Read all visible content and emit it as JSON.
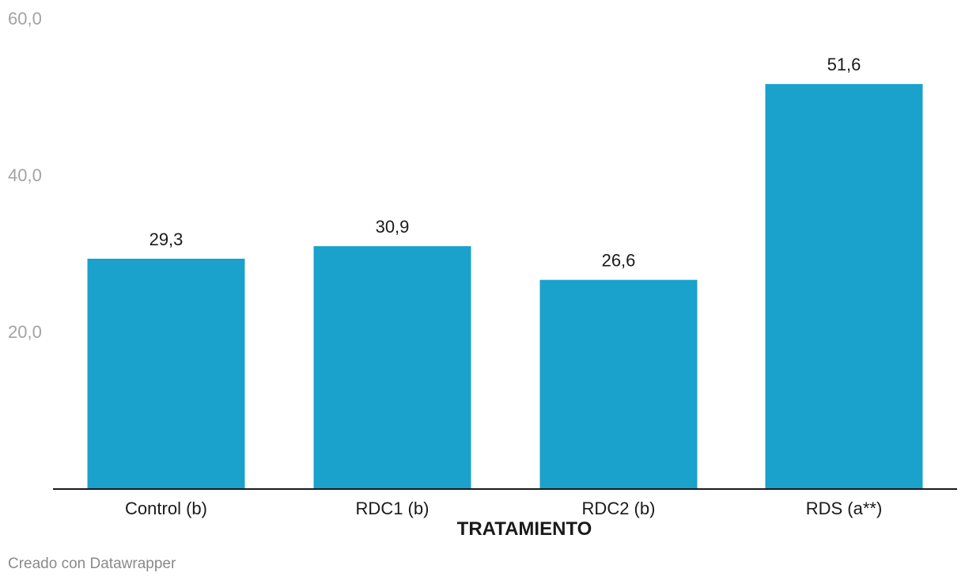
{
  "chart_data": {
    "type": "bar",
    "categories": [
      "Control (b)",
      "RDC1 (b)",
      "RDC2 (b)",
      "RDS (a**)"
    ],
    "values": [
      29.3,
      30.9,
      26.6,
      51.6
    ],
    "value_labels": [
      "29,3",
      "30,9",
      "26,6",
      "51,6"
    ],
    "xlabel": "TRATAMIENTO",
    "ylabel": "",
    "ylim": [
      0,
      60
    ],
    "yticks": [
      20,
      40,
      60
    ],
    "ytick_labels": [
      "20,0",
      "40,0",
      "60,0"
    ],
    "grid": false,
    "bar_color": "#1aa1cc"
  },
  "footer": {
    "credit": "Creado con Datawrapper"
  }
}
